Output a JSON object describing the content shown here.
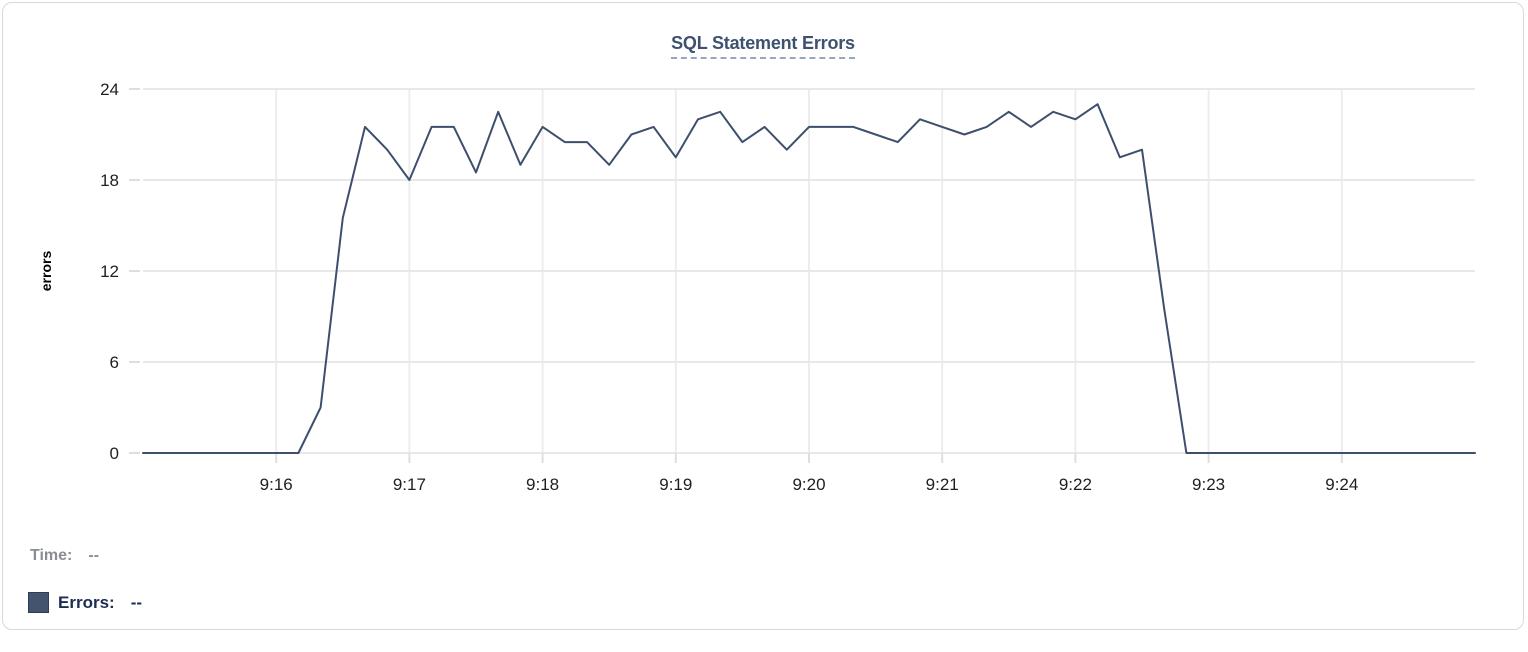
{
  "title": {
    "text": "SQL Statement Errors"
  },
  "chart_data": {
    "type": "line",
    "title": "SQL Statement Errors",
    "xlabel": "",
    "ylabel": "errors",
    "x_start": "9:15:00",
    "x_end": "9:25:00",
    "x_tick_labels": [
      "9:16",
      "9:17",
      "9:18",
      "9:19",
      "9:20",
      "9:21",
      "9:22",
      "9:23",
      "9:24"
    ],
    "y_ticks": [
      0,
      6,
      12,
      18,
      24
    ],
    "ylim": [
      0,
      24
    ],
    "grid": true,
    "legend_position": "bottom-left",
    "colors": {
      "line": "#3e4f6e",
      "grid_horizontal": "#e8e8e8",
      "grid_vertical": "#ededed",
      "tick_mark": "#dedede",
      "tick_text": "#1f1f1f",
      "axis_title_text": "#000000"
    },
    "series": [
      {
        "name": "Errors",
        "color": "#3e4f6e",
        "x": [
          "9:15:00",
          "9:15:10",
          "9:15:20",
          "9:15:30",
          "9:15:40",
          "9:15:50",
          "9:16:00",
          "9:16:10",
          "9:16:20",
          "9:16:30",
          "9:16:40",
          "9:16:50",
          "9:17:00",
          "9:17:10",
          "9:17:20",
          "9:17:30",
          "9:17:40",
          "9:17:50",
          "9:18:00",
          "9:18:10",
          "9:18:20",
          "9:18:30",
          "9:18:40",
          "9:18:50",
          "9:19:00",
          "9:19:10",
          "9:19:20",
          "9:19:30",
          "9:19:40",
          "9:19:50",
          "9:20:00",
          "9:20:10",
          "9:20:20",
          "9:20:30",
          "9:20:40",
          "9:20:50",
          "9:21:00",
          "9:21:10",
          "9:21:20",
          "9:21:30",
          "9:21:40",
          "9:21:50",
          "9:22:00",
          "9:22:10",
          "9:22:20",
          "9:22:30",
          "9:22:40",
          "9:22:50",
          "9:23:00",
          "9:23:10",
          "9:23:20",
          "9:23:30",
          "9:23:40",
          "9:23:50",
          "9:24:00",
          "9:24:10",
          "9:24:20",
          "9:24:30",
          "9:24:40",
          "9:24:50",
          "9:25:00"
        ],
        "values": [
          0,
          0,
          0,
          0,
          0,
          0,
          0,
          0,
          3,
          15.5,
          21.5,
          20,
          18,
          21.5,
          21.5,
          18.5,
          22.5,
          19,
          21.5,
          20.5,
          20.5,
          19,
          21,
          21.5,
          19.5,
          22,
          22.5,
          20.5,
          21.5,
          20,
          21.5,
          21.5,
          21.5,
          21,
          20.5,
          22,
          21.5,
          21,
          21.5,
          22.5,
          21.5,
          22.5,
          22,
          23,
          19.5,
          20,
          9.5,
          0,
          0,
          0,
          0,
          0,
          0,
          0,
          0,
          0,
          0,
          0,
          0,
          0,
          0
        ]
      }
    ]
  },
  "readout": {
    "time_label": "Time:",
    "time_value": "--",
    "errors_label": "Errors:",
    "errors_value": "--",
    "swatch_color": "#44536e"
  }
}
